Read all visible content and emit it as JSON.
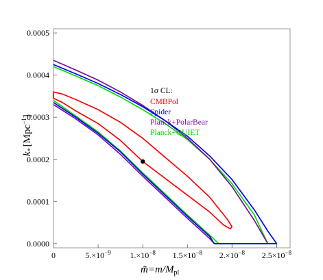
{
  "chart_data": {
    "type": "line",
    "title": "",
    "xlabel": "m̃=m/M",
    "xlabel_sub": "pl",
    "ylabel": "k",
    "ylabel_sub": "*",
    "ylabel_unit": "[Mpc",
    "ylabel_exp": "−1",
    "ylabel_close": "]",
    "xlim": [
      0,
      2.65e-08
    ],
    "ylim": [
      -1e-05,
      0.00051
    ],
    "x_ticks": [
      {
        "value": 0,
        "label": "0"
      },
      {
        "value": 5e-09,
        "label": "5.×10",
        "exp": "−9"
      },
      {
        "value": 1e-08,
        "label": "1.×10",
        "exp": "−8"
      },
      {
        "value": 1.5e-08,
        "label": "1.5×10",
        "exp": "−8"
      },
      {
        "value": 2e-08,
        "label": "2.×10",
        "exp": "−8"
      },
      {
        "value": 2.5e-08,
        "label": "2.5×10",
        "exp": "−8"
      }
    ],
    "y_ticks": [
      {
        "value": 0.0,
        "label": "0.0000"
      },
      {
        "value": 0.0001,
        "label": "0.0001"
      },
      {
        "value": 0.0002,
        "label": "0.0002"
      },
      {
        "value": 0.0003,
        "label": "0.0003"
      },
      {
        "value": 0.0004,
        "label": "0.0004"
      },
      {
        "value": 0.0005,
        "label": "0.0005"
      }
    ],
    "grid": false,
    "legend": {
      "position": "upper-right-interior",
      "title": "1σ CL:",
      "entries": [
        "CMBPol",
        "Spider",
        "Planck+PolarBear",
        "Planck+QUIET"
      ]
    },
    "fiducial_point": {
      "x": 1e-08,
      "y": 0.000195
    },
    "series": [
      {
        "name": "CMBPol",
        "color": "#ff0000",
        "closed": true,
        "points": [
          [
            1e-08,
            0.000195
          ],
          [
            1.5e-08,
            0.000115
          ],
          [
            1.75e-08,
            7.5e-05
          ],
          [
            1.9e-08,
            4.5e-05
          ],
          [
            1.98e-08,
            3.5e-05
          ],
          [
            2e-08,
            4e-05
          ],
          [
            1.95e-08,
            5.7e-05
          ],
          [
            1.75e-08,
            0.00011
          ],
          [
            1.5e-08,
            0.00016
          ],
          [
            1.25e-08,
            0.000205
          ],
          [
            1e-08,
            0.00025
          ],
          [
            7.5e-09,
            0.000288
          ],
          [
            5e-09,
            0.000318
          ],
          [
            2.5e-09,
            0.000342
          ],
          [
            1e-09,
            0.000355
          ],
          [
            0.0,
            0.00036
          ],
          [
            0.0,
            0.000345
          ],
          [
            1e-09,
            0.000335
          ],
          [
            2.5e-09,
            0.000315
          ],
          [
            5e-09,
            0.000285
          ],
          [
            7.5e-09,
            0.000245
          ],
          [
            1e-08,
            0.000195
          ]
        ]
      },
      {
        "name": "Spider",
        "color": "#0000ff",
        "closed": false,
        "points": [
          [
            0.0,
            0.000425
          ],
          [
            2.5e-09,
            0.000403
          ],
          [
            5e-09,
            0.00038
          ],
          [
            7.5e-09,
            0.000354
          ],
          [
            1e-08,
            0.000325
          ],
          [
            1.25e-08,
            0.000292
          ],
          [
            1.5e-08,
            0.000255
          ],
          [
            1.75e-08,
            0.000208
          ],
          [
            2e-08,
            0.000152
          ],
          [
            2.25e-08,
            8e-05
          ],
          [
            2.4e-08,
            3e-05
          ],
          [
            2.5e-08,
            0.0
          ],
          [
            1.8e-08,
            0.0
          ],
          [
            1.75e-08,
            1.7e-05
          ],
          [
            1.5e-08,
            6.5e-05
          ],
          [
            1.25e-08,
            0.000115
          ],
          [
            1e-08,
            0.000165
          ],
          [
            7.5e-09,
            0.000218
          ],
          [
            5e-09,
            0.000262
          ],
          [
            2.5e-09,
            0.0003
          ],
          [
            0.0,
            0.000335
          ]
        ]
      },
      {
        "name": "Planck+PolarBear",
        "color": "#7a0fa0",
        "closed": false,
        "points": [
          [
            0.0,
            0.000435
          ],
          [
            2.5e-09,
            0.000412
          ],
          [
            5e-09,
            0.000388
          ],
          [
            7.5e-09,
            0.00036
          ],
          [
            1e-08,
            0.000328
          ],
          [
            1.25e-08,
            0.000292
          ],
          [
            1.5e-08,
            0.00025
          ],
          [
            1.75e-08,
            0.0002
          ],
          [
            2e-08,
            0.000135
          ],
          [
            2.25e-08,
            5.5e-05
          ],
          [
            2.4e-08,
            0.0
          ],
          [
            1.8e-08,
            0.0
          ],
          [
            1.75e-08,
            1.2e-05
          ],
          [
            1.5e-08,
            6e-05
          ],
          [
            1.25e-08,
            0.00011
          ],
          [
            1e-08,
            0.00016
          ],
          [
            7.5e-09,
            0.000212
          ],
          [
            5e-09,
            0.000258
          ],
          [
            2.5e-09,
            0.000296
          ],
          [
            0.0,
            0.00033
          ]
        ]
      },
      {
        "name": "Planck+QUIET",
        "color": "#00dd00",
        "closed": false,
        "points": [
          [
            0.0,
            0.00042
          ],
          [
            2.5e-09,
            0.000398
          ],
          [
            5e-09,
            0.000375
          ],
          [
            7.5e-09,
            0.000348
          ],
          [
            1e-08,
            0.000318
          ],
          [
            1.25e-08,
            0.000285
          ],
          [
            1.5e-08,
            0.000247
          ],
          [
            1.75e-08,
            0.0002
          ],
          [
            2e-08,
            0.000142
          ],
          [
            2.25e-08,
            6.8e-05
          ],
          [
            2.4e-08,
            0.0
          ],
          [
            1.85e-08,
            0.0
          ],
          [
            1.75e-08,
            2e-05
          ],
          [
            1.5e-08,
            6.8e-05
          ],
          [
            1.25e-08,
            0.000118
          ],
          [
            1e-08,
            0.000168
          ],
          [
            7.5e-09,
            0.00022
          ],
          [
            5e-09,
            0.000265
          ],
          [
            2.5e-09,
            0.000303
          ],
          [
            0.0,
            0.00034
          ]
        ]
      }
    ]
  }
}
